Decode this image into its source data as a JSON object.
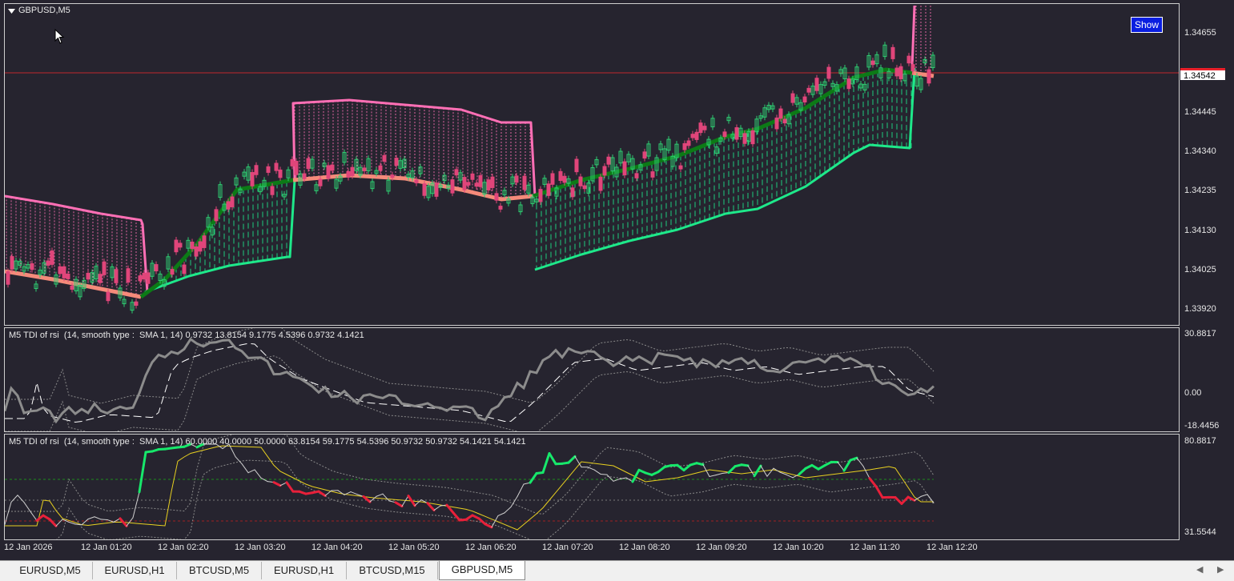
{
  "chart": {
    "symbol_label": "GBPUSD,M5",
    "show_button": "Show",
    "current_price": "1.34542",
    "price_axis": [
      "1.34655",
      "1.34445",
      "1.34340",
      "1.34235",
      "1.34130",
      "1.34025",
      "1.33920"
    ]
  },
  "indicator1": {
    "label": "M5 TDI of rsi  (14, smooth type :  SMA 1, 14) 0.9732 13.8154 9.1775 4.5396 0.9732 4.1421",
    "axis": [
      "30.8817",
      "0.00",
      "-18.4456"
    ]
  },
  "indicator2": {
    "label": "M5 TDI of rsi  (14, smooth type :  SMA 1, 14) 60.0000 40.0000 50.0000 63.8154 59.1775 54.5396 50.9732 50.9732 54.1421 54.1421",
    "axis": [
      "80.8817",
      "31.5544"
    ]
  },
  "time_axis": [
    "12 Jan 2026",
    "12 Jan 01:20",
    "12 Jan 02:20",
    "12 Jan 03:20",
    "12 Jan 04:20",
    "12 Jan 05:20",
    "12 Jan 06:20",
    "12 Jan 07:20",
    "12 Jan 08:20",
    "12 Jan 09:20",
    "12 Jan 10:20",
    "12 Jan 11:20",
    "12 Jan 12:20"
  ],
  "tabs": [
    {
      "label": "EURUSD,M5"
    },
    {
      "label": "EURUSD,H1"
    },
    {
      "label": "BTCUSD,M5"
    },
    {
      "label": "EURUSD,H1"
    },
    {
      "label": "BTCUSD,M15"
    },
    {
      "label": "GBPUSD,M5"
    }
  ],
  "colors": {
    "background": "#26242f",
    "bull_band": "#1ee88a",
    "bear_band": "#ff6fb5",
    "midline_bull": "#0c7a16",
    "midline_bear": "#f58a7a",
    "candle_up": "#2ecc71",
    "candle_down": "#e0457a",
    "price_line": "#c0282c",
    "tdi_bull": "#17e86b",
    "tdi_bear": "#e8203a"
  }
}
